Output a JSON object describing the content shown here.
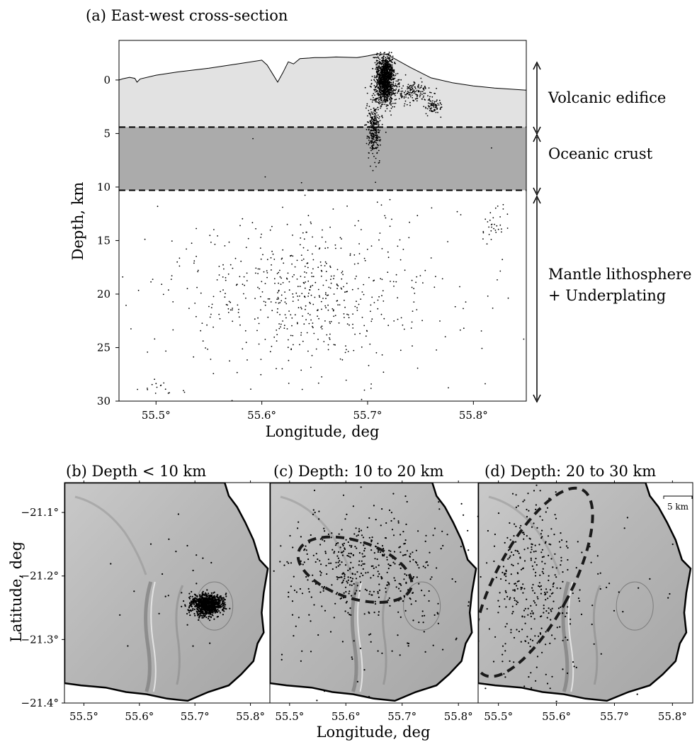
{
  "chart_data": [
    {
      "type": "scatter",
      "panel": "a",
      "title": "(a) East-west cross-section",
      "xlabel": "Longitude, deg",
      "ylabel": "Depth, km",
      "xlim": [
        55.465,
        55.85
      ],
      "ylim": [
        30,
        -3.7
      ],
      "x_ticks": [
        55.5,
        55.6,
        55.7,
        55.8
      ],
      "x_tick_labels": [
        "55.5°",
        "55.6°",
        "55.7°",
        "55.8°"
      ],
      "y_ticks": [
        0,
        5,
        10,
        15,
        20,
        25,
        30
      ],
      "y_tick_labels": [
        "0",
        "5",
        "10",
        "15",
        "20",
        "25",
        "30"
      ],
      "layer_boundaries_km": [
        4.4,
        10.3
      ],
      "layers": [
        {
          "name": "Volcanic edifice",
          "top_km": -3.7,
          "bottom_km": 4.4,
          "color": "#e2e2e2"
        },
        {
          "name": "Oceanic crust",
          "top_km": 4.4,
          "bottom_km": 10.3,
          "color": "#ababab"
        },
        {
          "name": "Mantle lithosphere",
          "name2": "+ Underplating",
          "top_km": 10.3,
          "bottom_km": 30,
          "color": "#ffffff"
        }
      ],
      "topography": {
        "x": [
          55.465,
          55.468,
          55.475,
          55.48,
          55.482,
          55.485,
          55.5,
          55.52,
          55.55,
          55.58,
          55.6,
          55.605,
          55.61,
          55.615,
          55.62,
          55.625,
          55.63,
          55.636,
          55.645,
          55.65,
          55.66,
          55.67,
          55.69,
          55.7,
          55.71,
          55.718,
          55.74,
          55.76,
          55.78,
          55.8,
          55.82,
          55.85
        ],
        "y": [
          0.0,
          -0.1,
          -0.25,
          -0.15,
          0.2,
          -0.1,
          -0.45,
          -0.75,
          -1.1,
          -1.55,
          -1.85,
          -1.4,
          -0.6,
          0.2,
          -0.7,
          -1.7,
          -1.5,
          -2.0,
          -2.05,
          -2.1,
          -2.1,
          -2.15,
          -2.1,
          -2.25,
          -2.45,
          -2.4,
          -1.2,
          -0.2,
          0.25,
          0.55,
          0.75,
          0.95
        ]
      },
      "clusters": [
        {
          "name": "main",
          "count": 1100,
          "cx": 55.716,
          "cy": 0.2,
          "sx": 0.0045,
          "sy": 1.1
        },
        {
          "name": "upper",
          "count": 250,
          "cx": 55.718,
          "cy": -0.9,
          "sx": 0.0035,
          "sy": 0.6
        },
        {
          "name": "column",
          "count": 320,
          "cx": 55.706,
          "cy": 4.6,
          "sx": 0.003,
          "sy": 1.3
        },
        {
          "name": "branch",
          "count": 180,
          "cx": 55.74,
          "cy": 1.0,
          "sx": 0.01,
          "sy": 0.5
        },
        {
          "name": "east-lobe",
          "count": 80,
          "cx": 55.762,
          "cy": 2.5,
          "sx": 0.004,
          "sy": 0.35
        },
        {
          "name": "deep-center",
          "count": 260,
          "cx": 55.64,
          "cy": 19.5,
          "sx": 0.04,
          "sy": 2.8
        },
        {
          "name": "mantle",
          "count": 380,
          "cx": 55.64,
          "cy": 20.5,
          "sx": 0.09,
          "sy": 5.0
        },
        {
          "name": "sw-deep",
          "count": 14,
          "cx": 55.505,
          "cy": 29.0,
          "sx": 0.009,
          "sy": 0.5
        },
        {
          "name": "e-cluster",
          "count": 30,
          "cx": 55.82,
          "cy": 13.6,
          "sx": 0.006,
          "sy": 0.9
        }
      ]
    },
    {
      "type": "scatter",
      "panel": "b",
      "title": "(b) Depth < 10 km",
      "xlim": [
        55.465,
        55.835
      ],
      "ylim": [
        -21.4,
        -21.053
      ],
      "clusters": [
        {
          "name": "summit",
          "count": 900,
          "cx": 55.722,
          "cy": -21.245,
          "sx": 0.014,
          "sy": 0.008
        },
        {
          "name": "scatter",
          "count": 25,
          "cx": 55.66,
          "cy": -21.2,
          "sx": 0.08,
          "sy": 0.07
        }
      ]
    },
    {
      "type": "scatter",
      "panel": "c",
      "title": "(c) Depth: 10 to 20 km",
      "xlim": [
        55.465,
        55.835
      ],
      "ylim": [
        -21.4,
        -21.053
      ],
      "ellipse": {
        "cx": 55.616,
        "cy": -21.19,
        "rx_deg": 0.105,
        "ry_deg": 0.045,
        "rotate_deg": 18
      },
      "clusters": [
        {
          "name": "ellipse",
          "count": 260,
          "cx": 55.62,
          "cy": -21.19,
          "sx": 0.06,
          "sy": 0.035
        },
        {
          "name": "broad",
          "count": 240,
          "cx": 55.66,
          "cy": -21.2,
          "sx": 0.09,
          "sy": 0.075
        }
      ]
    },
    {
      "type": "scatter",
      "panel": "d",
      "title": "(d) Depth: 20 to 30 km",
      "xlim": [
        55.465,
        55.835
      ],
      "ylim": [
        -21.4,
        -21.053
      ],
      "ellipse": {
        "cx": 55.56,
        "cy": -21.21,
        "rx_deg": 0.065,
        "ry_deg": 0.165,
        "rotate_deg": 28
      },
      "scale_bar": "5 km",
      "clusters": [
        {
          "name": "ellipse",
          "count": 330,
          "cx": 55.56,
          "cy": -21.21,
          "sx": 0.04,
          "sy": 0.075
        },
        {
          "name": "outer",
          "count": 40,
          "cx": 55.68,
          "cy": -21.25,
          "sx": 0.1,
          "sy": 0.09
        }
      ]
    }
  ],
  "maps_common": {
    "xlabel": "Longitude, deg",
    "ylabel": "Latitude, deg",
    "x_ticks": [
      55.5,
      55.6,
      55.7,
      55.8
    ],
    "x_tick_labels": [
      "55.5°",
      "55.6°",
      "55.7°",
      "55.8°"
    ],
    "y_ticks": [
      -21.1,
      -21.2,
      -21.3,
      -21.4
    ],
    "y_tick_labels": [
      "−21.1°",
      "−21.2°",
      "−21.3°",
      "−21.4°"
    ]
  }
}
